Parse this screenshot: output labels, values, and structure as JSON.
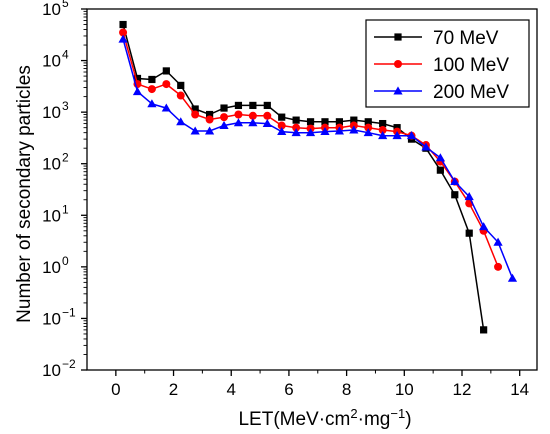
{
  "chart_data": {
    "type": "line",
    "xlabel": {
      "pre": "LET(MeV·cm",
      "sup1": "2",
      "mid": "·mg",
      "sup2": "−1",
      "post": ")"
    },
    "ylabel": "Number of secondary particles",
    "xlim": [
      -1,
      14.6
    ],
    "ylim_log10": [
      -2,
      5
    ],
    "y_scale": "log",
    "x_ticks": [
      0,
      2,
      4,
      6,
      8,
      10,
      12,
      14
    ],
    "x_tick_labels": [
      "0",
      "2",
      "4",
      "6",
      "8",
      "10",
      "12",
      "14"
    ],
    "y_tick_exponents": [
      -2,
      -1,
      0,
      1,
      2,
      3,
      4,
      5
    ],
    "y_tick_labels": [
      {
        "base": "10",
        "exp": "−2"
      },
      {
        "base": "10",
        "exp": "−1"
      },
      {
        "base": "10",
        "exp": "0"
      },
      {
        "base": "10",
        "exp": "1"
      },
      {
        "base": "10",
        "exp": "2"
      },
      {
        "base": "10",
        "exp": "3"
      },
      {
        "base": "10",
        "exp": "4"
      },
      {
        "base": "10",
        "exp": "5"
      }
    ],
    "legend_position": "top-right",
    "series": [
      {
        "name": "70 MeV",
        "color": "#000000",
        "marker": "square",
        "x": [
          0.25,
          0.75,
          1.25,
          1.75,
          2.25,
          2.75,
          3.25,
          3.75,
          4.25,
          4.75,
          5.25,
          5.75,
          6.25,
          6.75,
          7.25,
          7.75,
          8.25,
          8.75,
          9.25,
          9.75,
          10.25,
          10.75,
          11.25,
          11.75,
          12.25,
          12.75
        ],
        "y": [
          50000,
          4500,
          4300,
          6300,
          3300,
          1150,
          900,
          1200,
          1350,
          1350,
          1350,
          800,
          700,
          650,
          650,
          650,
          700,
          650,
          600,
          500,
          300,
          200,
          75,
          25,
          4.5,
          0.06
        ]
      },
      {
        "name": "100 MeV",
        "color": "#ff0000",
        "marker": "circle",
        "x": [
          0.25,
          0.75,
          1.25,
          1.75,
          2.25,
          2.75,
          3.25,
          3.75,
          4.25,
          4.75,
          5.25,
          5.75,
          6.25,
          6.75,
          7.25,
          7.75,
          8.25,
          8.75,
          9.25,
          9.75,
          10.25,
          10.75,
          11.25,
          11.75,
          12.25,
          12.75,
          13.25
        ],
        "y": [
          35000,
          3500,
          2800,
          3500,
          2100,
          900,
          720,
          800,
          900,
          850,
          850,
          550,
          500,
          480,
          500,
          500,
          550,
          500,
          450,
          420,
          350,
          230,
          110,
          45,
          17,
          5,
          1.0
        ]
      },
      {
        "name": "200 MeV",
        "color": "#0000ff",
        "marker": "triangle",
        "x": [
          0.25,
          0.75,
          1.25,
          1.75,
          2.25,
          2.75,
          3.25,
          3.75,
          4.25,
          4.75,
          5.25,
          5.75,
          6.25,
          6.75,
          7.25,
          7.75,
          8.25,
          8.75,
          9.25,
          9.75,
          10.25,
          10.75,
          11.25,
          11.75,
          12.25,
          12.75,
          13.25,
          13.75
        ],
        "y": [
          26000,
          2500,
          1450,
          1200,
          650,
          430,
          430,
          550,
          620,
          620,
          600,
          420,
          400,
          400,
          420,
          430,
          450,
          400,
          350,
          350,
          350,
          210,
          130,
          45,
          23,
          6,
          3,
          0.6
        ]
      }
    ]
  }
}
